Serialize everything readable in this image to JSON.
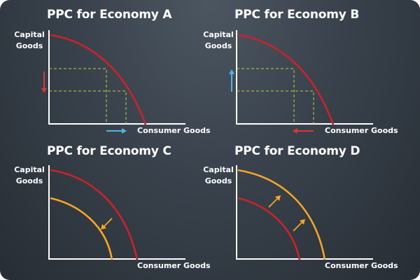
{
  "panels": [
    {
      "title": "PPC for Economy A",
      "ylabel": "Capital\nGoods",
      "xlabel": "Consumer Goods"
    },
    {
      "title": "PPC for Economy B",
      "ylabel": "Capital\nGoods",
      "xlabel": "Consumer Goods"
    },
    {
      "title": "PPC for Economy C",
      "ylabel": "Capital\nGoods",
      "xlabel": "Consumer Goods"
    },
    {
      "title": "PPC for Economy D",
      "ylabel": "Capital\nGoods",
      "xlabel": "Consumer Goods"
    }
  ],
  "colors": {
    "background": "#39424c",
    "axis": "#ffffff",
    "ppc_red": "#cc2229",
    "ppc_orange": "#f5a623",
    "guide_green": "#b8d430",
    "guide_gray": "#9aa3ad",
    "arrow_blue": "#4fb4e6",
    "arrow_red": "#d63a2e"
  },
  "icons": {
    "arrow_down": "red-down-arrow-icon",
    "arrow_up": "blue-up-arrow-icon",
    "arrow_right": "blue-right-arrow-icon",
    "arrow_left": "red-left-arrow-icon"
  }
}
